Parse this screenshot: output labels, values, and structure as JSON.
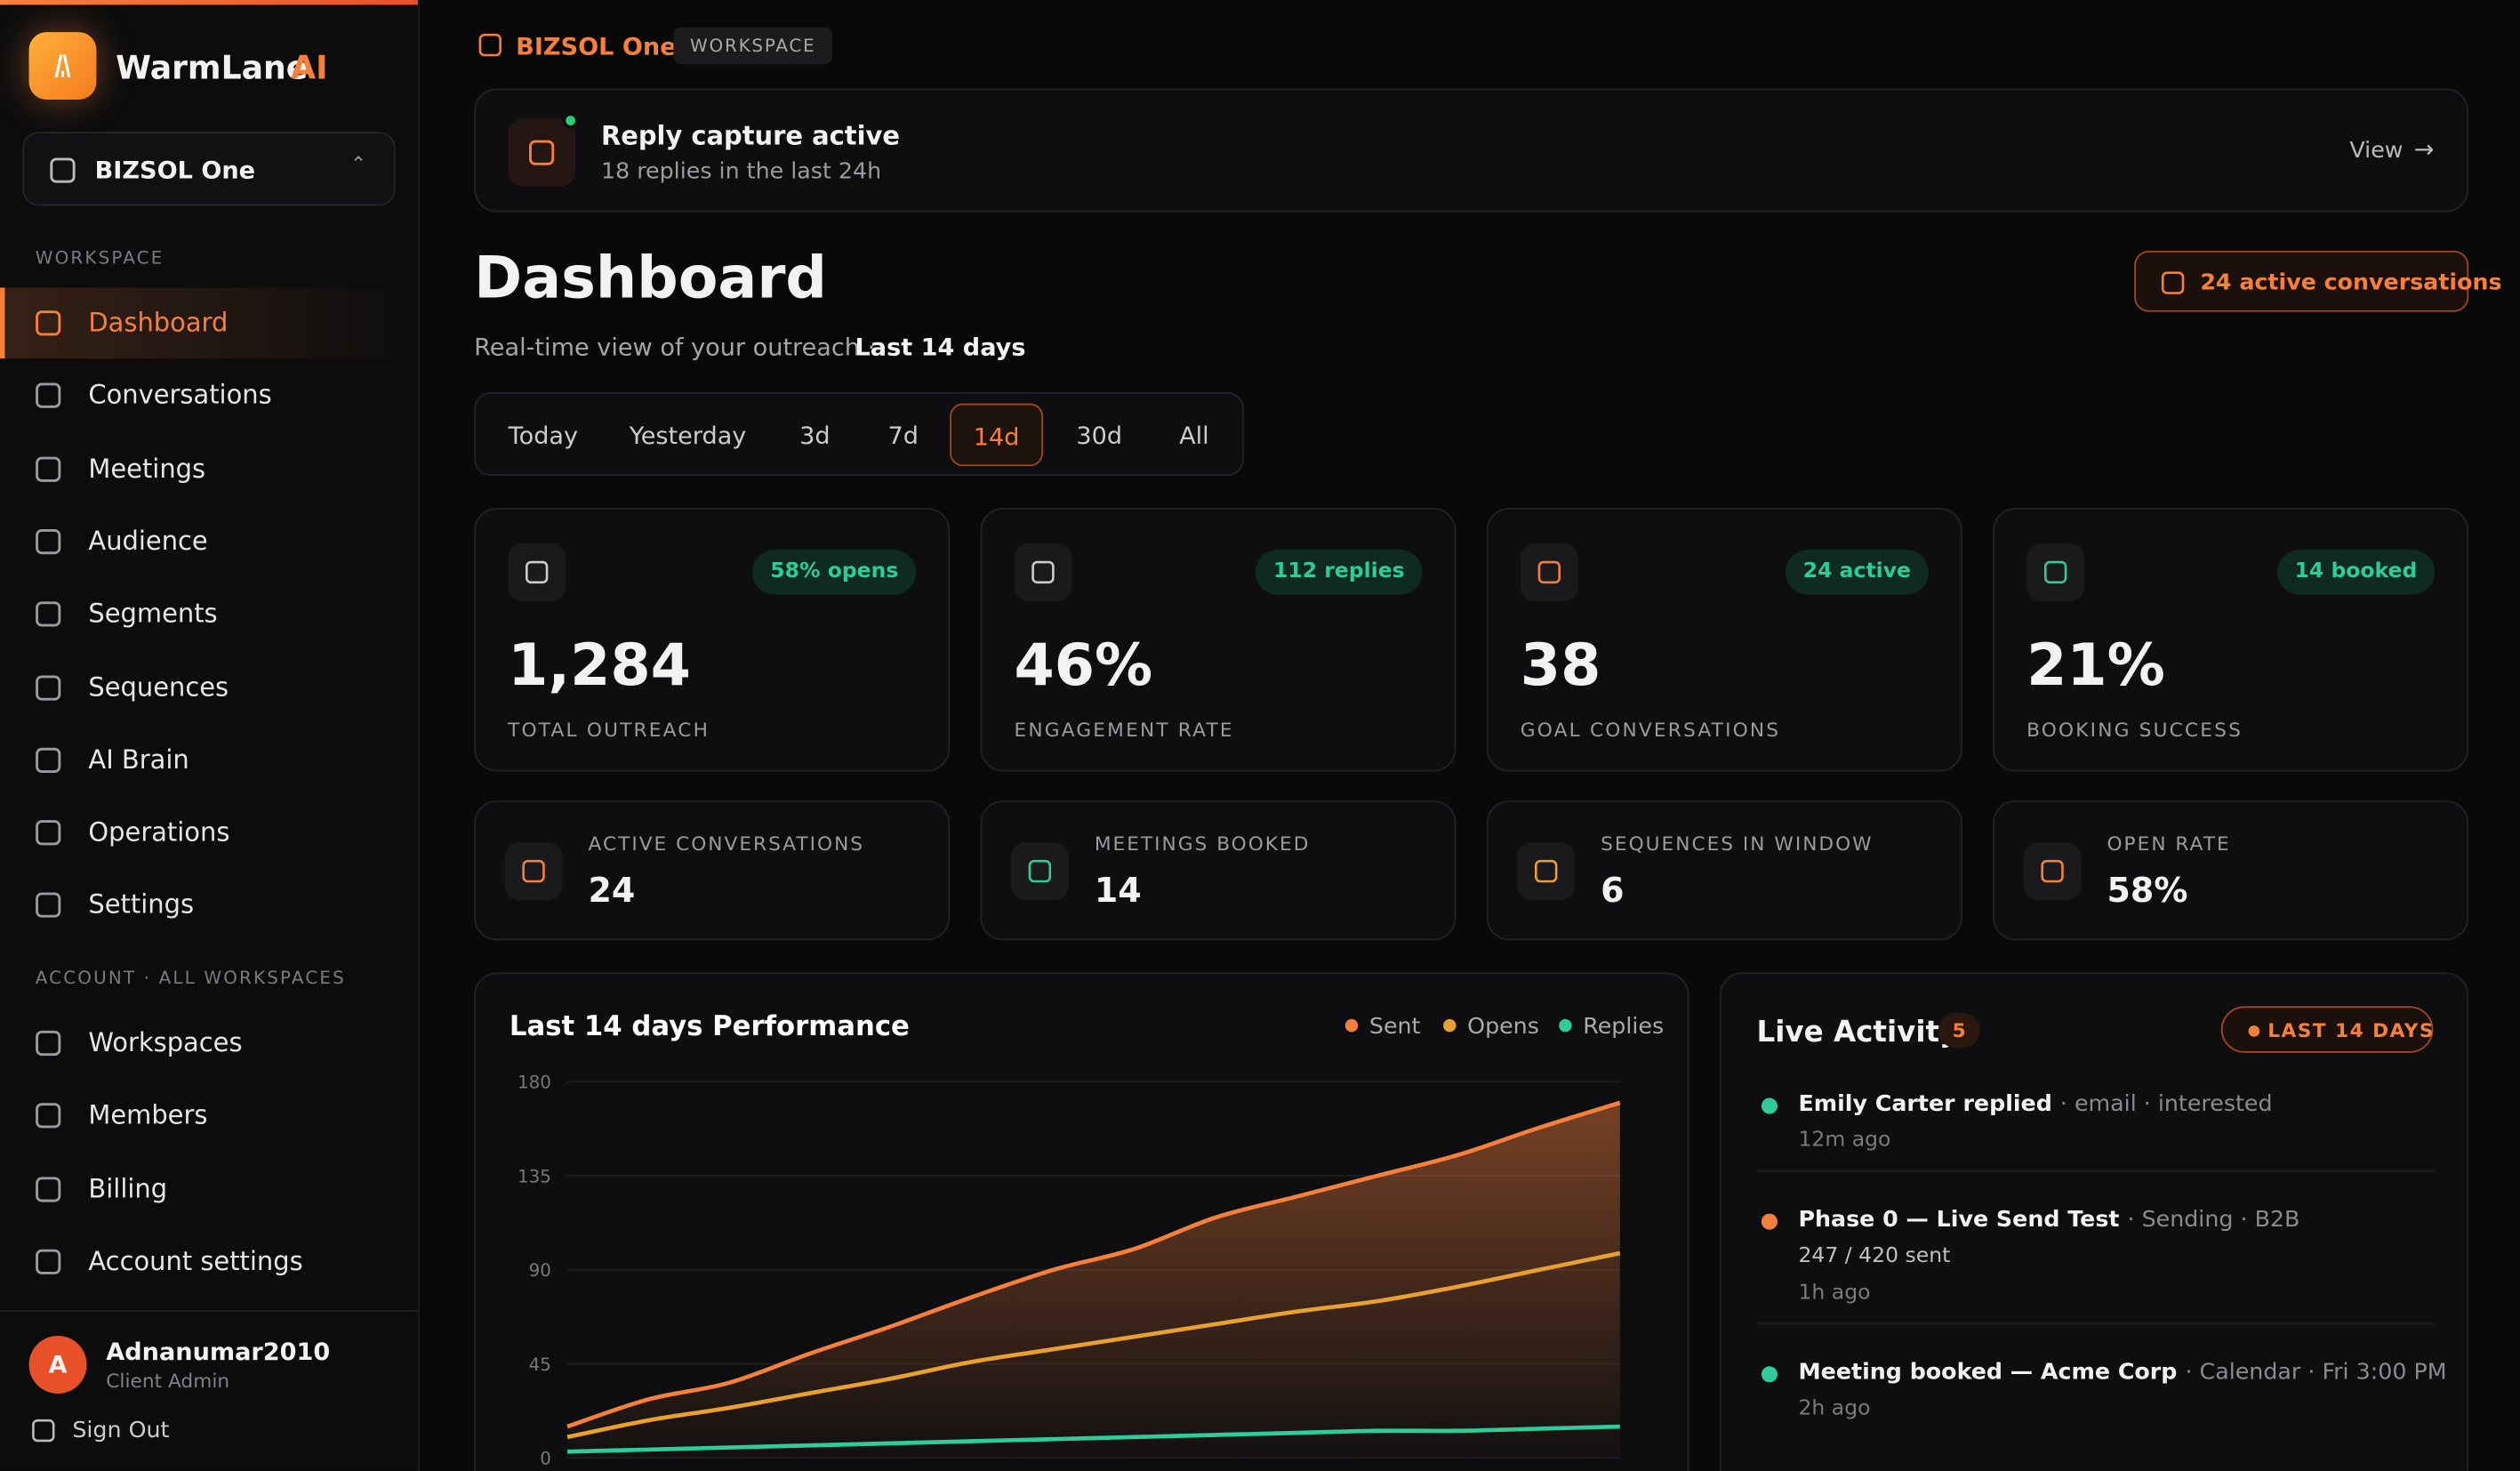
{
  "sidebar": {
    "brand": "WarmLane",
    "brand_accent": "AI",
    "workspace": "BIZSOL One",
    "section_workspace": "WORKSPACE",
    "nav": [
      "Dashboard",
      "Conversations",
      "Meetings",
      "Audience",
      "Segments",
      "Sequences",
      "AI Brain",
      "Operations",
      "Settings"
    ],
    "section_account": "ACCOUNT · ALL WORKSPACES",
    "account_nav": [
      "Workspaces",
      "Members",
      "Billing",
      "Account settings"
    ],
    "user": {
      "initial": "A",
      "name": "Adnanumar2010",
      "role": "Client Admin"
    },
    "sign_out": "Sign Out"
  },
  "header": {
    "workspace": "BIZSOL One",
    "badge": "WORKSPACE"
  },
  "banner": {
    "title": "Reply capture active",
    "subtitle": "18 replies in the last 24h",
    "action": "View"
  },
  "page": {
    "title": "Dashboard",
    "subtitle": "Real-time view of your outreach ·",
    "range": "Last 14 days",
    "conversations_button": "24 active conversations"
  },
  "ranges": [
    "Today",
    "Yesterday",
    "3d",
    "7d",
    "14d",
    "30d",
    "All"
  ],
  "kpis": [
    {
      "badge": "58% opens",
      "value": "1,284",
      "label": "TOTAL OUTREACH"
    },
    {
      "badge": "112 replies",
      "value": "46%",
      "label": "ENGAGEMENT RATE"
    },
    {
      "badge": "24 active",
      "value": "38",
      "label": "GOAL CONVERSATIONS"
    },
    {
      "badge": "14 booked",
      "value": "21%",
      "label": "BOOKING SUCCESS"
    }
  ],
  "stats": [
    {
      "label": "ACTIVE CONVERSATIONS",
      "value": "24"
    },
    {
      "label": "MEETINGS BOOKED",
      "value": "14"
    },
    {
      "label": "SEQUENCES IN WINDOW",
      "value": "6"
    },
    {
      "label": "OPEN RATE",
      "value": "58%"
    }
  ],
  "activity": {
    "title": "Live Activity",
    "count": "5",
    "badge": "LAST 14 DAYS",
    "items": [
      {
        "title": "Emily Carter replied",
        "meta": "· email · interested",
        "time": "12m ago",
        "color": "#2ecc9a"
      },
      {
        "title": "Phase 0 — Live Send Test",
        "meta": "· Sending · B2B",
        "detail": "247 / 420 sent",
        "time": "1h ago",
        "color": "#f5803e"
      },
      {
        "title": "Meeting booked — Acme Corp",
        "meta": "· Calendar · Fri 3:00 PM",
        "time": "2h ago",
        "color": "#2ecc9a"
      }
    ]
  },
  "chart_data": {
    "type": "line",
    "title": "Last 14 days Performance",
    "categories": [
      null,
      null,
      null,
      null,
      null,
      null,
      null,
      null,
      null,
      null,
      null,
      null,
      null,
      null
    ],
    "series": [
      {
        "name": "Sent",
        "color": "#f5803e",
        "values": [
          15,
          28,
          36,
          50,
          63,
          77,
          90,
          100,
          115,
          125,
          135,
          145,
          158,
          170
        ]
      },
      {
        "name": "Opens",
        "color": "#e8a030",
        "values": [
          10,
          18,
          24,
          31,
          38,
          46,
          52,
          58,
          64,
          70,
          75,
          82,
          90,
          98
        ]
      },
      {
        "name": "Replies",
        "color": "#2ecc9a",
        "values": [
          3,
          4,
          5,
          6,
          7,
          8,
          9,
          10,
          11,
          12,
          13,
          13,
          14,
          15
        ]
      }
    ],
    "ylim": [
      0,
      180
    ],
    "yticks": [
      0,
      45,
      90,
      135,
      180
    ],
    "grid": true
  }
}
